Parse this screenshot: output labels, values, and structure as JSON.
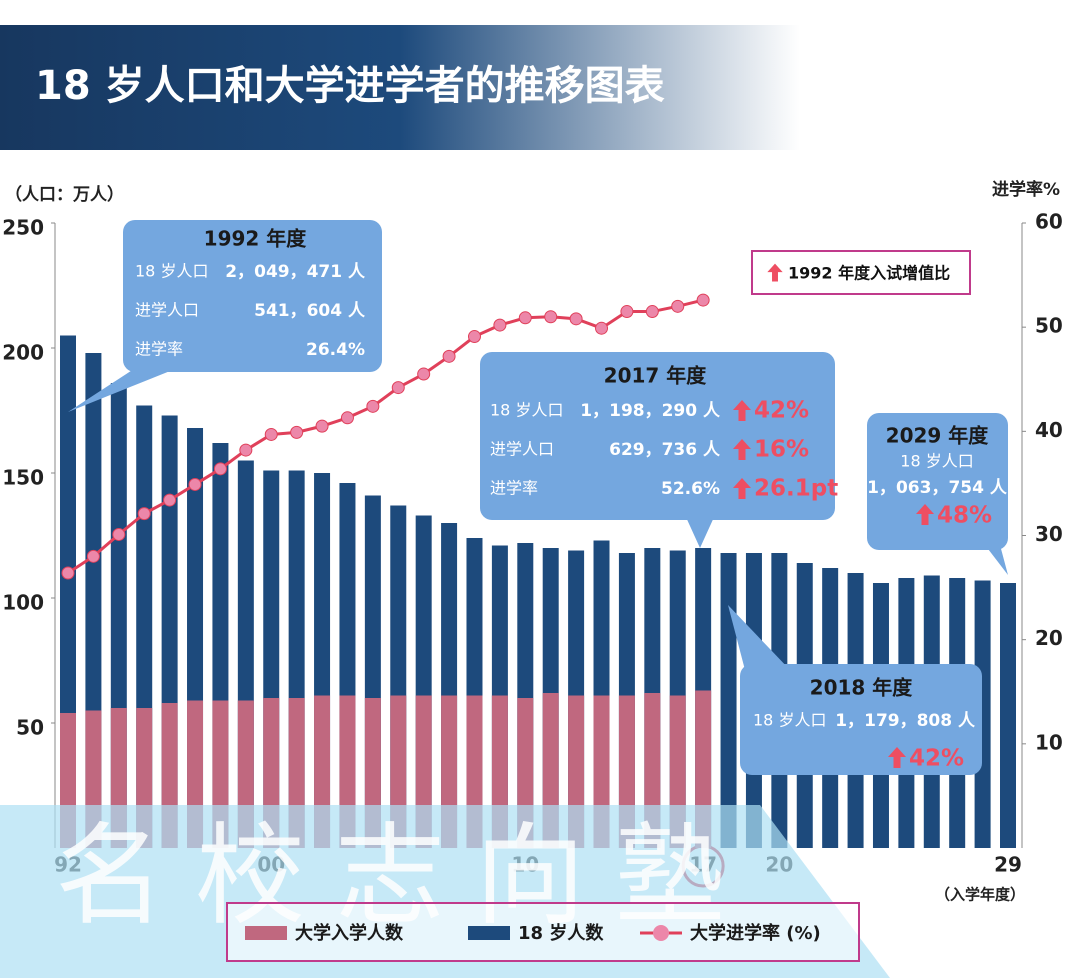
{
  "chart_data": {
    "type": "bar",
    "title": "18 岁人口和大学进学者的推移图表",
    "y_label": "（人口：万人）",
    "y2_label": "进学率%",
    "x_label": "（入学年度）",
    "categories": [
      "92",
      null,
      null,
      null,
      null,
      null,
      null,
      null,
      "00",
      null,
      null,
      null,
      null,
      null,
      null,
      null,
      null,
      null,
      "10",
      null,
      null,
      null,
      null,
      null,
      null,
      "17",
      null,
      null,
      "20",
      null,
      null,
      null,
      null,
      null,
      null,
      null,
      null,
      "29"
    ],
    "ylim": [
      0,
      250
    ],
    "yticks": [
      50,
      100,
      150,
      200,
      250
    ],
    "y2lim": [
      0,
      60
    ],
    "y2ticks": [
      10,
      20,
      30,
      40,
      50,
      60
    ],
    "series": [
      {
        "name": "18 岁人数",
        "color": "#1d4a7c",
        "values": [
          205,
          198,
          186,
          177,
          173,
          168,
          162,
          155,
          151,
          151,
          150,
          146,
          141,
          137,
          133,
          130,
          124,
          121,
          122,
          120,
          119,
          123,
          118,
          120,
          119,
          120,
          118,
          118,
          118,
          114,
          112,
          110,
          106,
          108,
          109,
          108,
          107,
          106
        ]
      },
      {
        "name": "大学入学人数",
        "color": "#c0687f",
        "values": [
          54,
          55,
          56,
          56,
          58,
          59,
          59,
          59,
          60,
          60,
          61,
          61,
          60,
          61,
          61,
          61,
          61,
          61,
          60,
          62,
          61,
          61,
          61,
          62,
          61,
          63,
          null,
          null,
          null,
          null,
          null,
          null,
          null,
          null,
          null,
          null,
          null,
          null
        ]
      },
      {
        "name": "大学进学率 (%)",
        "type": "line",
        "axis": "y2",
        "color": "#e0405a",
        "values": [
          26.4,
          28.0,
          30.1,
          32.1,
          33.4,
          34.9,
          36.4,
          38.2,
          39.7,
          39.9,
          40.5,
          41.3,
          42.4,
          44.2,
          45.5,
          47.2,
          49.1,
          50.2,
          50.9,
          51.0,
          50.8,
          49.9,
          51.5,
          51.5,
          52.0,
          52.6,
          null,
          null,
          null,
          null,
          null,
          null,
          null,
          null,
          null,
          null,
          null,
          null
        ]
      }
    ],
    "highlight_label": "1992 年度入试增值比",
    "annotations": [
      {
        "title": "1992 年度",
        "rows": [
          [
            "18 岁人口",
            "2，049，471 人"
          ],
          [
            "进学人口",
            "541，604 人"
          ],
          [
            "进学率",
            "26.4%"
          ]
        ]
      },
      {
        "title": "2017 年度",
        "rows": [
          [
            "18 岁人口",
            "1，198，290 人",
            "42%"
          ],
          [
            "进学人口",
            "629，736 人",
            "16%"
          ],
          [
            "进学率",
            "52.6%",
            "26.1pt"
          ]
        ]
      },
      {
        "title": "2029 年度",
        "rows": [
          [
            "18 岁人口",
            "1，063，754 人",
            "48%"
          ]
        ]
      },
      {
        "title": "2018 年度",
        "rows": [
          [
            "18 岁人口",
            "1，179，808 人",
            "42%"
          ]
        ]
      }
    ],
    "watermark": "名校志向塾"
  }
}
